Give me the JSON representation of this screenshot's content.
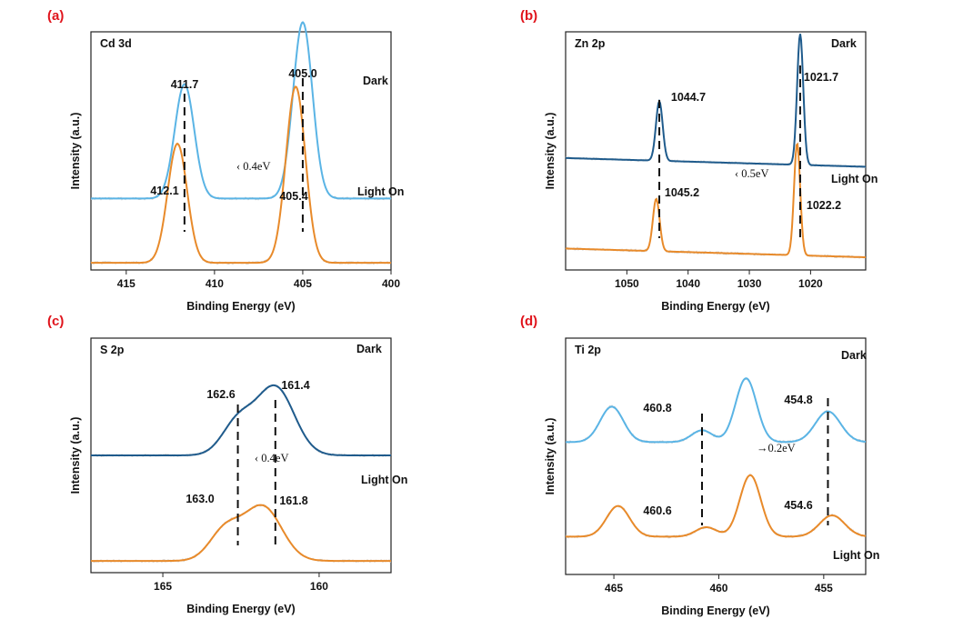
{
  "figure_labels": [
    "(a)",
    "(b)",
    "(c)",
    "(d)"
  ],
  "chart_data": [
    {
      "type": "line",
      "panel": "(a)",
      "title": "Cd 3d",
      "xlabel": "Binding Energy (eV)",
      "ylabel": "Intensity (a.u.)",
      "xlim": [
        417,
        400
      ],
      "xticks": [
        415,
        410,
        405,
        400
      ],
      "tick_labels": [
        "415",
        "410",
        "405",
        "400"
      ],
      "reversed_x": true,
      "series": [
        {
          "name": "Dark",
          "color": "#5ab4e5",
          "base": 0.3,
          "peaks": [
            {
              "c": 411.7,
              "h": 0.48,
              "w": 0.55
            },
            {
              "c": 405.0,
              "h": 0.74,
              "w": 0.55
            }
          ]
        },
        {
          "name": "Light On",
          "color": "#e88a2a",
          "base": 0.03,
          "peaks": [
            {
              "c": 412.1,
              "h": 0.5,
              "w": 0.55
            },
            {
              "c": 405.4,
              "h": 0.74,
              "w": 0.55
            }
          ]
        }
      ],
      "annotations": [
        {
          "text": "411.7",
          "x": 411.7
        },
        {
          "text": "405.0",
          "x": 405.0
        },
        {
          "text": "412.1",
          "x": 412.1
        },
        {
          "text": "405.4",
          "x": 405.4
        },
        {
          "text": "Dark"
        },
        {
          "text": "Light On"
        },
        {
          "text": "‹ 0.4eV"
        }
      ]
    },
    {
      "type": "line",
      "panel": "(b)",
      "title": "Zn 2p",
      "xlabel": "Binding Energy (eV)",
      "ylabel": "Intensity (a.u.)",
      "xlim": [
        1060,
        1011
      ],
      "xticks": [
        1050,
        1040,
        1030,
        1020
      ],
      "tick_labels": [
        "1050",
        "1040",
        "1030",
        "1020"
      ],
      "reversed_x": true,
      "series": [
        {
          "name": "Dark",
          "color": "#1f5b8c",
          "base": 0.44,
          "peaks": [
            {
              "c": 1044.7,
              "h": 0.25,
              "w": 0.55
            },
            {
              "c": 1021.7,
              "h": 0.55,
              "w": 0.5
            }
          ]
        },
        {
          "name": "Light On",
          "color": "#e88a2a",
          "base": 0.06,
          "peaks": [
            {
              "c": 1045.2,
              "h": 0.22,
              "w": 0.55
            },
            {
              "c": 1022.2,
              "h": 0.47,
              "w": 0.5
            }
          ]
        }
      ],
      "annotations": [
        {
          "text": "1044.7",
          "x": 1044.7
        },
        {
          "text": "1021.7",
          "x": 1021.7
        },
        {
          "text": "1045.2",
          "x": 1045.2
        },
        {
          "text": "1022.2",
          "x": 1022.2
        },
        {
          "text": "Dark"
        },
        {
          "text": "Light On"
        },
        {
          "text": "‹ 0.5eV"
        }
      ]
    },
    {
      "type": "line",
      "panel": "(c)",
      "title": "S 2p",
      "xlabel": "Binding Energy (eV)",
      "ylabel": "Intensity (a.u.)",
      "xlim": [
        167.3,
        157.7
      ],
      "xticks": [
        165,
        160
      ],
      "tick_labels": [
        "165",
        "160"
      ],
      "reversed_x": true,
      "series": [
        {
          "name": "Dark",
          "color": "#1f5b8c",
          "base": 0.5,
          "peaks": [
            {
              "c": 162.6,
              "h": 0.14,
              "w": 0.5
            },
            {
              "c": 161.4,
              "h": 0.29,
              "w": 0.6
            }
          ]
        },
        {
          "name": "Light On",
          "color": "#e88a2a",
          "base": 0.05,
          "peaks": [
            {
              "c": 163.0,
              "h": 0.13,
              "w": 0.5
            },
            {
              "c": 161.8,
              "h": 0.23,
              "w": 0.6
            }
          ]
        }
      ],
      "annotations": [
        {
          "text": "162.6",
          "x": 162.6
        },
        {
          "text": "161.4",
          "x": 161.4
        },
        {
          "text": "163.0",
          "x": 163.0
        },
        {
          "text": "161.8",
          "x": 161.8
        },
        {
          "text": "Dark"
        },
        {
          "text": "Light On"
        },
        {
          "text": "‹ 0.4eV"
        }
      ]
    },
    {
      "type": "line",
      "panel": "(d)",
      "title": "Ti 2p",
      "xlabel": "Binding Energy (eV)",
      "ylabel": "Intensity (a.u.)",
      "xlim": [
        467.3,
        453.0
      ],
      "xticks": [
        465,
        460,
        455
      ],
      "tick_labels": [
        "465",
        "460",
        "455"
      ],
      "reversed_x": true,
      "series": [
        {
          "name": "Dark",
          "color": "#5ab4e5",
          "base": 0.56,
          "peaks": [
            {
              "c": 465.1,
              "h": 0.15,
              "w": 0.55
            },
            {
              "c": 460.8,
              "h": 0.05,
              "w": 0.5
            },
            {
              "c": 458.7,
              "h": 0.27,
              "w": 0.5
            },
            {
              "c": 454.8,
              "h": 0.13,
              "w": 0.6
            }
          ]
        },
        {
          "name": "Light On",
          "color": "#e88a2a",
          "base": 0.16,
          "peaks": [
            {
              "c": 464.8,
              "h": 0.13,
              "w": 0.55
            },
            {
              "c": 460.6,
              "h": 0.04,
              "w": 0.5
            },
            {
              "c": 458.5,
              "h": 0.26,
              "w": 0.5
            },
            {
              "c": 454.6,
              "h": 0.09,
              "w": 0.6
            }
          ]
        }
      ],
      "annotations": [
        {
          "text": "460.8",
          "x": 460.8
        },
        {
          "text": "454.8",
          "x": 454.8
        },
        {
          "text": "460.6",
          "x": 460.6
        },
        {
          "text": "454.6",
          "x": 454.6
        },
        {
          "text": "Dark"
        },
        {
          "text": "Light On"
        },
        {
          "text": "→0.2eV"
        }
      ]
    }
  ]
}
